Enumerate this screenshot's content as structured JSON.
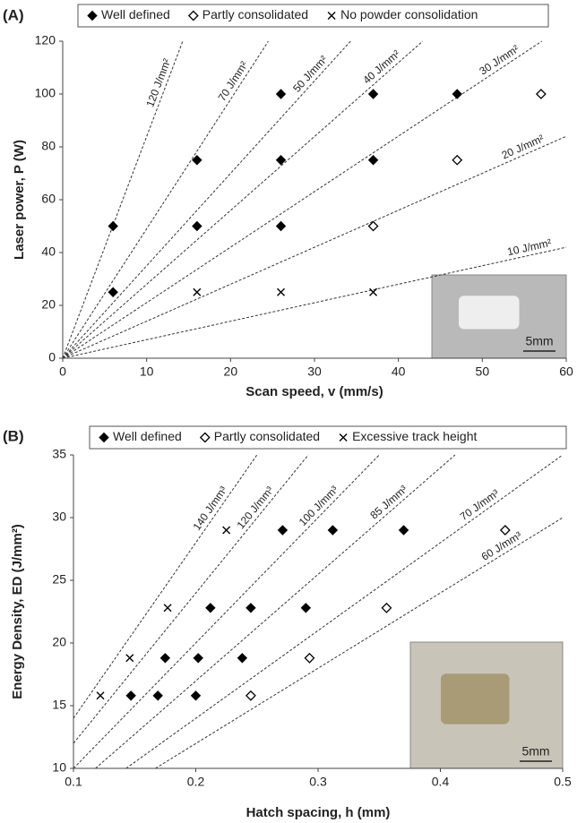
{
  "chart_data": [
    {
      "type": "scatter",
      "panel_label": "(A)",
      "xlabel": "Scan speed, v (mm/s)",
      "ylabel": "Laser power, P (W)",
      "xlim": [
        0,
        60
      ],
      "ylim": [
        0,
        120
      ],
      "xticks": [
        0,
        10,
        20,
        30,
        40,
        50,
        60
      ],
      "yticks": [
        0,
        20,
        40,
        60,
        80,
        100,
        120
      ],
      "series": [
        {
          "name": "Well defined",
          "marker": "diamond-filled",
          "color": "#000000",
          "x": [
            6,
            6,
            16,
            16,
            26,
            26,
            26,
            37,
            37,
            47
          ],
          "values": [
            50,
            25,
            75,
            50,
            100,
            75,
            50,
            100,
            75,
            100
          ]
        },
        {
          "name": "Partly consolidated",
          "marker": "diamond-open",
          "color": "#000000",
          "x": [
            57,
            47,
            37
          ],
          "values": [
            100,
            75,
            50
          ]
        },
        {
          "name": "No powder consolidation",
          "marker": "cross",
          "color": "#000000",
          "x": [
            16,
            26,
            37
          ],
          "values": [
            25,
            25,
            25
          ]
        }
      ],
      "reference_lines": [
        {
          "label": "120 J/mm²",
          "x": [
            0,
            14.3
          ],
          "values": [
            0,
            120
          ]
        },
        {
          "label": "70 J/mm²",
          "x": [
            0,
            24.5
          ],
          "values": [
            0,
            120
          ]
        },
        {
          "label": "50 J/mm²",
          "x": [
            0,
            34.3
          ],
          "values": [
            0,
            120
          ]
        },
        {
          "label": "40 J/mm²",
          "x": [
            0,
            42.9
          ],
          "values": [
            0,
            120
          ]
        },
        {
          "label": "30 J/mm²",
          "x": [
            0,
            57.1
          ],
          "values": [
            0,
            120
          ]
        },
        {
          "label": "20 J/mm²",
          "x": [
            0,
            60
          ],
          "values": [
            0,
            84
          ]
        },
        {
          "label": "10 J/mm²",
          "x": [
            0,
            60
          ],
          "values": [
            0,
            42
          ]
        }
      ],
      "inset_scale_label": "5mm"
    },
    {
      "type": "scatter",
      "panel_label": "(B)",
      "xlabel": "Hatch spacing, h (mm)",
      "ylabel": "Energy Density, ED (J/mm²)",
      "xlim": [
        0.1,
        0.5
      ],
      "ylim": [
        10,
        35
      ],
      "xticks": [
        0.1,
        0.2,
        0.3,
        0.4,
        0.5
      ],
      "yticks": [
        10,
        15,
        20,
        25,
        30,
        35
      ],
      "series": [
        {
          "name": "Well defined",
          "marker": "diamond-filled",
          "color": "#000000",
          "x": [
            0.147,
            0.169,
            0.2,
            0.175,
            0.202,
            0.238,
            0.212,
            0.245,
            0.29,
            0.271,
            0.312,
            0.37
          ],
          "values": [
            15.8,
            15.8,
            15.8,
            18.8,
            18.8,
            18.8,
            22.8,
            22.8,
            22.8,
            29,
            29,
            29
          ]
        },
        {
          "name": "Partly consolidated",
          "marker": "diamond-open",
          "color": "#000000",
          "x": [
            0.245,
            0.293,
            0.356,
            0.453
          ],
          "values": [
            15.8,
            18.8,
            22.8,
            29
          ]
        },
        {
          "name": "Excessive track height",
          "marker": "cross",
          "color": "#000000",
          "x": [
            0.122,
            0.146,
            0.177,
            0.225
          ],
          "values": [
            15.8,
            18.8,
            22.8,
            29
          ]
        }
      ],
      "reference_lines": [
        {
          "label": "140 J/mm³",
          "x": [
            0.1,
            0.25
          ],
          "values": [
            14,
            35
          ]
        },
        {
          "label": "120 J/mm³",
          "x": [
            0.1,
            0.292
          ],
          "values": [
            12,
            35
          ]
        },
        {
          "label": "100 J/mm³",
          "x": [
            0.1,
            0.35
          ],
          "values": [
            10,
            35
          ]
        },
        {
          "label": "85 J/mm³",
          "x": [
            0.118,
            0.412
          ],
          "values": [
            10,
            35
          ]
        },
        {
          "label": "70 J/mm³",
          "x": [
            0.143,
            0.5
          ],
          "values": [
            10,
            35
          ]
        },
        {
          "label": "60 J/mm³",
          "x": [
            0.167,
            0.5
          ],
          "values": [
            10,
            30
          ]
        }
      ],
      "inset_scale_label": "5mm"
    }
  ]
}
